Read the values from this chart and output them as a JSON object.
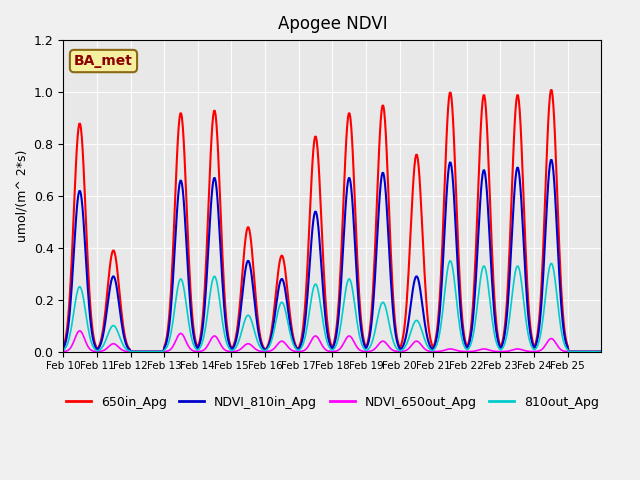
{
  "title": "Apogee NDVI",
  "ylabel": "umol/(m^ 2*s)",
  "annotation_text": "BA_met",
  "ylim": [
    0,
    1.2
  ],
  "background_color": "#f0f0f0",
  "plot_bg_color": "#e8e8e8",
  "series": {
    "650in_Apg": {
      "color": "#ff0000",
      "lw": 1.5
    },
    "NDVI_810in_Apg": {
      "color": "#0000cc",
      "lw": 1.5
    },
    "NDVI_650out_Apg": {
      "color": "#ff00ff",
      "lw": 1.2
    },
    "810out_Apg": {
      "color": "#00cccc",
      "lw": 1.2
    }
  },
  "day_peaks": {
    "Feb10": {
      "r": 0.88,
      "b": 0.62,
      "m": 0.08,
      "c": 0.25
    },
    "Feb11": {
      "r": 0.39,
      "b": 0.29,
      "m": 0.03,
      "c": 0.1
    },
    "Feb12": {
      "r": 0.0,
      "b": 0.0,
      "m": 0.0,
      "c": 0.0
    },
    "Feb13": {
      "r": 0.92,
      "b": 0.66,
      "m": 0.07,
      "c": 0.28
    },
    "Feb14": {
      "r": 0.93,
      "b": 0.67,
      "m": 0.06,
      "c": 0.29
    },
    "Feb15": {
      "r": 0.48,
      "b": 0.35,
      "m": 0.03,
      "c": 0.14
    },
    "Feb16": {
      "r": 0.37,
      "b": 0.28,
      "m": 0.04,
      "c": 0.19
    },
    "Feb17": {
      "r": 0.83,
      "b": 0.54,
      "m": 0.06,
      "c": 0.26
    },
    "Feb18": {
      "r": 0.92,
      "b": 0.67,
      "m": 0.06,
      "c": 0.28
    },
    "Feb19": {
      "r": 0.95,
      "b": 0.69,
      "m": 0.04,
      "c": 0.19
    },
    "Feb20": {
      "r": 0.76,
      "b": 0.29,
      "m": 0.04,
      "c": 0.12
    },
    "Feb21": {
      "r": 1.0,
      "b": 0.73,
      "m": 0.01,
      "c": 0.35
    },
    "Feb22": {
      "r": 0.99,
      "b": 0.7,
      "m": 0.01,
      "c": 0.33
    },
    "Feb23": {
      "r": 0.99,
      "b": 0.71,
      "m": 0.01,
      "c": 0.33
    },
    "Feb24": {
      "r": 1.01,
      "b": 0.74,
      "m": 0.05,
      "c": 0.34
    },
    "Feb25": {
      "r": 0.0,
      "b": 0.0,
      "m": 0.0,
      "c": 0.0
    }
  },
  "xtick_labels": [
    "Feb 10",
    "Feb 11",
    "Feb 12",
    "Feb 13",
    "Feb 14",
    "Feb 15",
    "Feb 16",
    "Feb 17",
    "Feb 18",
    "Feb 19",
    "Feb 20",
    "Feb 21",
    "Feb 22",
    "Feb 23",
    "Feb 24",
    "Feb 25"
  ],
  "legend_labels": [
    "650in_Apg",
    "NDVI_810in_Apg",
    "NDVI_650out_Apg",
    "810out_Apg"
  ],
  "legend_colors": [
    "#ff0000",
    "#0000cc",
    "#ff00ff",
    "#00cccc"
  ]
}
